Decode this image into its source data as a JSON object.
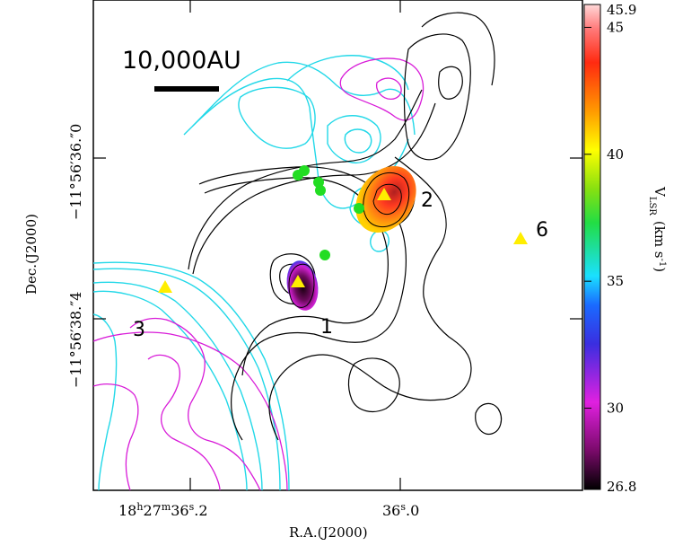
{
  "chart_data": {
    "type": "contour map with velocity color image",
    "xlabel": "R.A.(J2000)",
    "ylabel": "Dec.(J2000)",
    "x_ticks": [
      {
        "label": "18h27m36.s2",
        "parts": [
          "18",
          "h",
          "27",
          "m",
          "36",
          "s",
          ".2"
        ]
      },
      {
        "label": "36.s0",
        "parts": [
          "36",
          "s",
          ".0"
        ]
      }
    ],
    "y_ticks": [
      {
        "label": "−11°56′36.″0"
      },
      {
        "label": "−11°56′38.″4"
      }
    ],
    "scale_bar": {
      "label": "10,000AU"
    },
    "colorbar": {
      "title": "V_LSR (km s^-1)",
      "title_main": "V",
      "title_sub": "LSR",
      "title_unit": "(km s",
      "title_sup": "-1",
      "title_close": ")",
      "min": 26.8,
      "max": 45.9,
      "tick_values": [
        30,
        35,
        40,
        45
      ],
      "tick_labels": [
        "30",
        "35",
        "40",
        "45"
      ],
      "min_label": "26.8",
      "max_label": "45.9"
    },
    "sources": [
      {
        "label": "1"
      },
      {
        "label": "2"
      },
      {
        "label": "3"
      },
      {
        "label": "6"
      }
    ],
    "colors": {
      "contour_black": "#000000",
      "contour_cyan": "#22d8e8",
      "contour_magenta": "#d81bd8",
      "marker_triangle": "#ffee00",
      "marker_dot": "#22dd22"
    }
  }
}
